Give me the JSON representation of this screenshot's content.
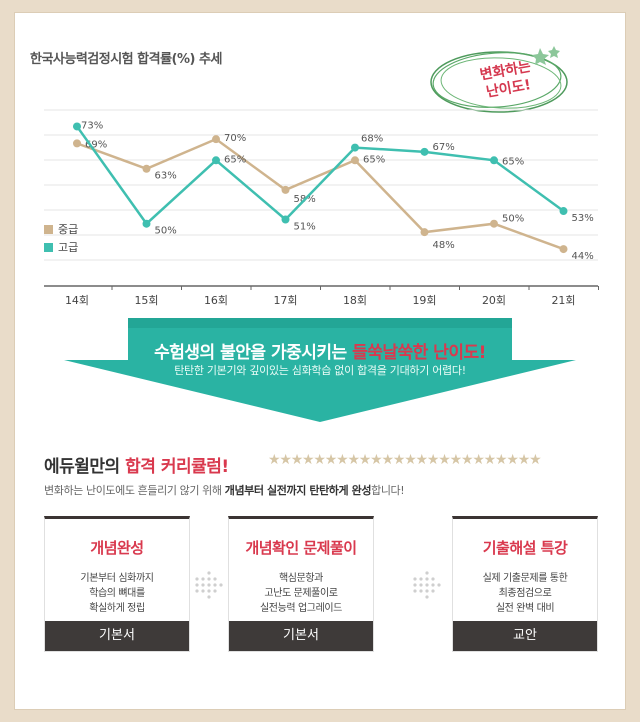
{
  "chart_data": {
    "type": "line",
    "title": "한국사능력검정시험 합격률(%) 추세",
    "categories": [
      "14회",
      "15회",
      "16회",
      "17회",
      "18회",
      "19회",
      "20회",
      "21회"
    ],
    "series": [
      {
        "name": "중급",
        "color": "#cfb48e",
        "values": [
          69,
          63,
          70,
          58,
          65,
          48,
          50,
          44
        ],
        "labels": [
          "69%",
          "63%",
          "70%",
          "58%",
          "65%",
          "48%",
          "50%",
          "44%"
        ]
      },
      {
        "name": "고급",
        "color": "#3fbfb0",
        "values": [
          73,
          50,
          65,
          51,
          68,
          67,
          65,
          53
        ],
        "labels": [
          "73%",
          "50%",
          "65%",
          "51%",
          "68%",
          "67%",
          "65%",
          "53%"
        ]
      }
    ],
    "ylim": [
      40,
      75
    ],
    "grid": true,
    "legend": "left"
  },
  "stamp": {
    "line1": "변화하는",
    "line2": "난이도!"
  },
  "banner": {
    "headline_pre": "수험생의 불안을 가중시키는 ",
    "headline_highlight": "들쑥날쑥한 난이도!",
    "subline": "탄탄한 기본기와 깊이있는 심화학습 없이 합격을 기대하기 어렵다!"
  },
  "curriculum": {
    "title_pre": "에듀윌만의 ",
    "title_highlight": "합격 커리큘럼!",
    "stars": "★★★★★★★★★★★★★★★★★★★★★★★★",
    "subtitle_pre": "변화하는 난이도에도 흔들리기 않기 위해 ",
    "subtitle_bold": "개념부터 실전까지 탄탄하게 완성",
    "subtitle_post": "합니다!",
    "cards": [
      {
        "title": "개념완성",
        "lines": [
          "기본부터 심화까지",
          "학습의 뼈대를",
          "확실하게 정립"
        ],
        "footer": "기본서"
      },
      {
        "title": "개념확인 문제풀이",
        "lines": [
          "핵심문항과",
          "고난도 문제풀이로",
          "실전능력 업그레이드"
        ],
        "footer": "기본서"
      },
      {
        "title": "기출해설 특강",
        "lines": [
          "실제 기출문제를 통한",
          "최종점검으로",
          "실전 완벽 대비"
        ],
        "footer": "교안"
      }
    ]
  }
}
